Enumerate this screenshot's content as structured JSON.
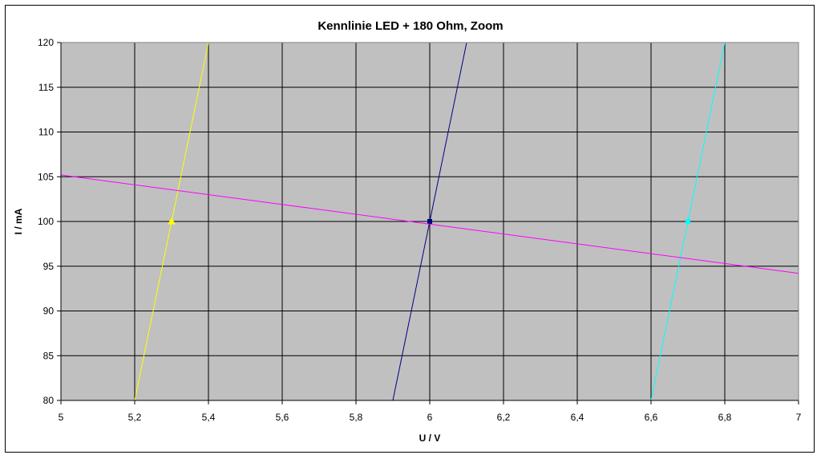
{
  "chart_data": {
    "type": "line",
    "title": "Kennlinie LED + 180 Ohm, Zoom",
    "xlabel": "U / V",
    "ylabel": "I / mA",
    "xlim": [
      5,
      7
    ],
    "ylim": [
      80,
      120
    ],
    "x_ticks": [
      "5",
      "5,2",
      "5,4",
      "5,6",
      "5,8",
      "6",
      "6,2",
      "6,4",
      "6,6",
      "6,8",
      "7"
    ],
    "y_ticks": [
      "80",
      "85",
      "90",
      "95",
      "100",
      "105",
      "110",
      "115",
      "120"
    ],
    "grid": true,
    "legend": "none",
    "plot_background": "#c0c0c0",
    "series": [
      {
        "color": "#ffff00",
        "points": [
          [
            5.2,
            80
          ],
          [
            5.4,
            120
          ]
        ],
        "markers": [
          [
            5.3,
            100
          ]
        ]
      },
      {
        "color": "#000080",
        "points": [
          [
            5.9,
            80
          ],
          [
            6.1,
            120
          ]
        ],
        "markers": [
          [
            6.0,
            100
          ]
        ]
      },
      {
        "color": "#00ffff",
        "points": [
          [
            6.6,
            80
          ],
          [
            6.8,
            120
          ]
        ],
        "markers": [
          [
            6.7,
            100
          ]
        ]
      },
      {
        "color": "#ff00ff",
        "points": [
          [
            5.0,
            105.2
          ],
          [
            7.0,
            94.2
          ]
        ],
        "markers": []
      }
    ]
  }
}
